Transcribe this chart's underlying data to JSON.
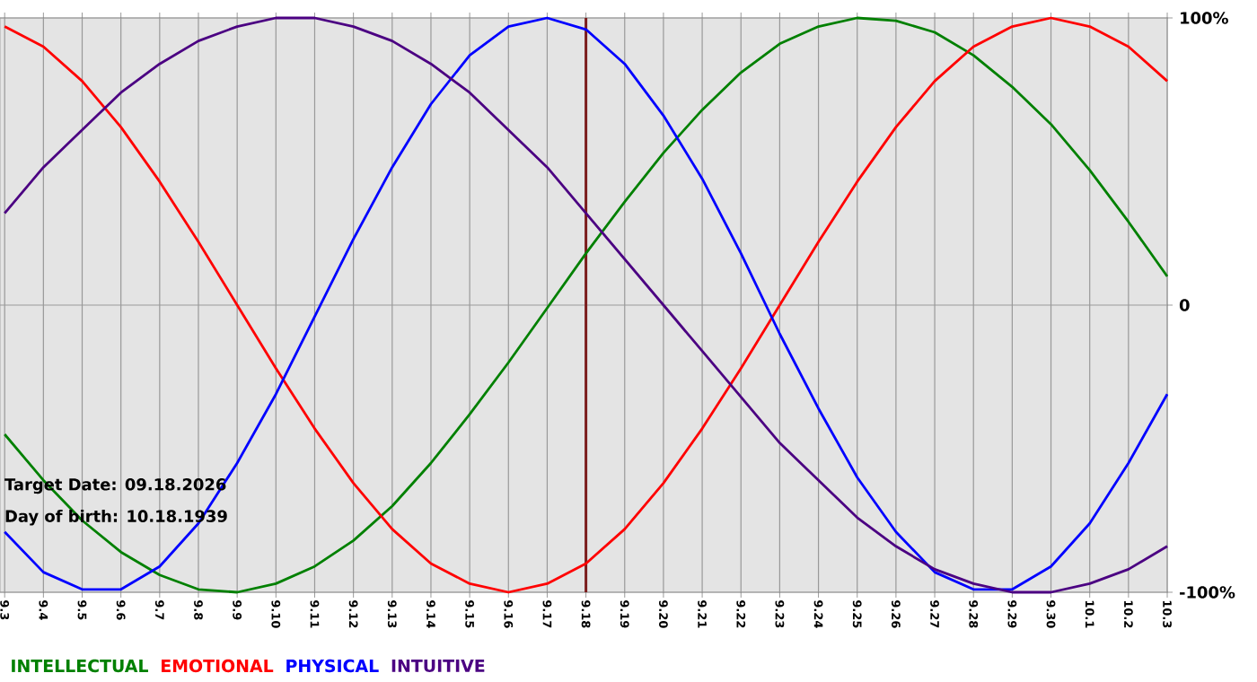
{
  "chart_data": {
    "type": "line",
    "categories": [
      "9.3",
      "9.4",
      "9.5",
      "9.6",
      "9.7",
      "9.8",
      "9.9",
      "9.10",
      "9.11",
      "9.12",
      "9.13",
      "9.14",
      "9.15",
      "9.16",
      "9.17",
      "9.18",
      "9.19",
      "9.20",
      "9.21",
      "9.22",
      "9.23",
      "9.24",
      "9.25",
      "9.26",
      "9.27",
      "9.28",
      "9.29",
      "9.30",
      "10.1",
      "10.2",
      "10.3"
    ],
    "series": [
      {
        "name": "INTELLECTUAL",
        "color": "#008000",
        "values": [
          -45,
          -61,
          -75,
          -86,
          -94,
          -99,
          -100,
          -97,
          -91,
          -82,
          -70,
          -55,
          -38,
          -20,
          -1,
          18,
          36,
          53,
          68,
          81,
          91,
          97,
          100,
          99,
          95,
          87,
          76,
          63,
          47,
          29,
          10
        ]
      },
      {
        "name": "EMOTIONAL",
        "color": "#ff0000",
        "values": [
          97,
          90,
          78,
          62,
          43,
          22,
          0,
          -22,
          -43,
          -62,
          -78,
          -90,
          -97,
          -100,
          -97,
          -90,
          -78,
          -62,
          -43,
          -22,
          0,
          22,
          43,
          62,
          78,
          90,
          97,
          100,
          97,
          90,
          78
        ]
      },
      {
        "name": "PHYSICAL",
        "color": "#0000ff",
        "values": [
          -79,
          -93,
          -99,
          -99,
          -91,
          -76,
          -55,
          -31,
          -4,
          23,
          48,
          70,
          87,
          97,
          100,
          96,
          84,
          66,
          44,
          18,
          -10,
          -36,
          -60,
          -79,
          -93,
          -99,
          -99,
          -91,
          -76,
          -55,
          -31
        ]
      },
      {
        "name": "INTUITIVE",
        "color": "#4b0082",
        "values": [
          32,
          48,
          61,
          74,
          84,
          92,
          97,
          100,
          100,
          97,
          92,
          84,
          74,
          61,
          48,
          32,
          16,
          0,
          -16,
          -32,
          -48,
          -61,
          -74,
          -84,
          -92,
          -97,
          -100,
          -100,
          -97,
          -92,
          -84
        ]
      }
    ],
    "ylim": [
      -100,
      100
    ],
    "yticks": [
      {
        "value": 100,
        "label": "100%"
      },
      0,
      {
        "value": -100,
        "label": "-100%"
      }
    ],
    "grid": true,
    "legend": "bottom",
    "marker": "none",
    "line_style": "solid",
    "ref_lines": [
      {
        "axis": "x",
        "value": "9.18",
        "color": "#7b1c1c"
      }
    ],
    "annotations": [
      "Target Date: 09.18.2026",
      "Day of birth: 10.18.1939"
    ]
  }
}
